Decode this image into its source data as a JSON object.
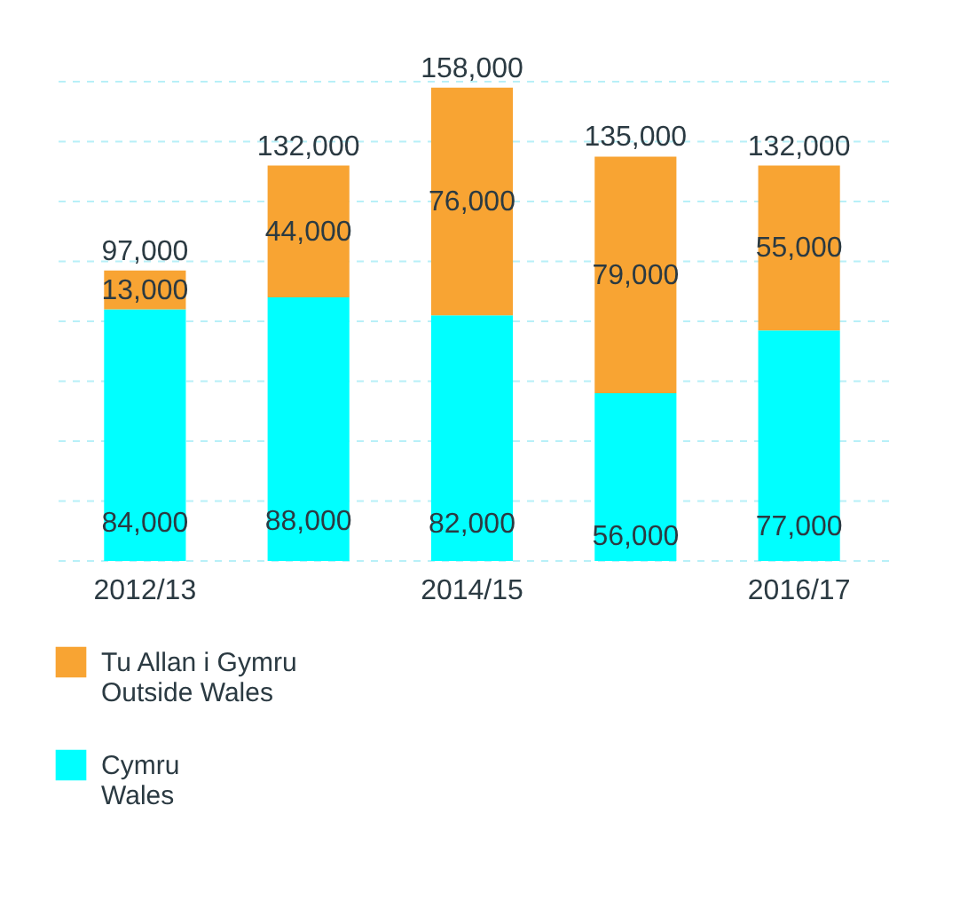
{
  "chart_data": {
    "type": "bar",
    "stacked": true,
    "categories": [
      "2012/13",
      null,
      "2014/15",
      null,
      "2016/17"
    ],
    "series": [
      {
        "name": "Cymru\nWales",
        "color": "#00ffff",
        "values": [
          84000,
          88000,
          82000,
          56000,
          77000
        ],
        "value_labels": [
          "84,000",
          "88,000",
          "82,000",
          "56,000",
          "77,000"
        ]
      },
      {
        "name": "Tu Allan i Gymru\nOutside Wales",
        "color": "#f8a433",
        "values": [
          13000,
          44000,
          76000,
          79000,
          55000
        ],
        "value_labels": [
          "13,000",
          "44,000",
          "76,000",
          "79,000",
          "55,000"
        ]
      }
    ],
    "totals": [
      "97,000",
      "132,000",
      "158,000",
      "135,000",
      "132,000"
    ],
    "ylim": [
      0,
      160000
    ],
    "yticks": [
      {
        "value": 0,
        "label": null
      },
      {
        "value": 20000,
        "label": null
      },
      {
        "value": 40000,
        "label": null
      },
      {
        "value": 60000,
        "label": null
      },
      {
        "value": 80000,
        "label": null
      },
      {
        "value": 100000,
        "label": null
      },
      {
        "value": 120000,
        "label": null
      },
      {
        "value": 140000,
        "label": null
      },
      {
        "value": 160000,
        "label": null
      }
    ],
    "grid": "y",
    "tick_labels": "x",
    "legend": "bottom left"
  }
}
